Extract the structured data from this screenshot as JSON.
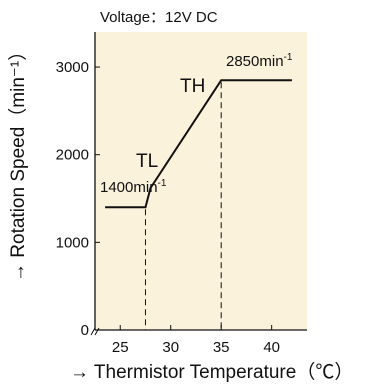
{
  "note": "Voltage：12V DC",
  "chart_data": {
    "type": "line",
    "x": [
      23.5,
      27.5,
      28.0,
      35.0,
      42.0
    ],
    "y": [
      1400,
      1400,
      1620,
      2850,
      2850
    ],
    "xlim": [
      22.5,
      43.5
    ],
    "ylim": [
      0,
      3400
    ],
    "xticks": [
      25,
      30,
      35,
      40
    ],
    "yticks": [
      0,
      1000,
      2000,
      3000
    ],
    "xlabel": "→ Thermistor Temperature（℃）",
    "ylabel": "→ Rotation Speed（min⁻¹）",
    "grid": false,
    "background": "#fbf2dc",
    "line_color": "#111111",
    "annotations": {
      "tl": "TL",
      "th": "TH",
      "low_speed_value": "1400min",
      "low_speed_sup": "-1",
      "high_speed_value": "2850min",
      "high_speed_sup": "-1"
    }
  }
}
